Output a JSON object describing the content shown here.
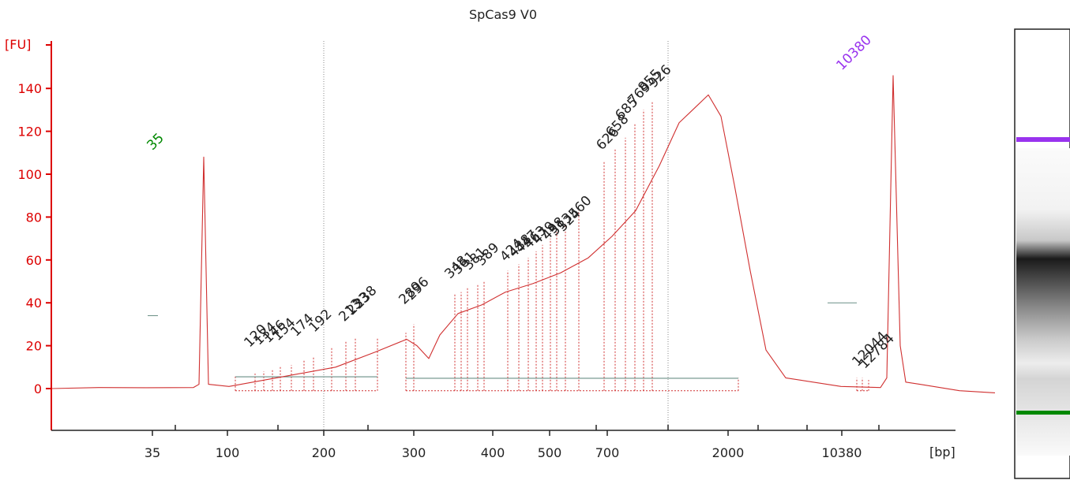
{
  "chart_data": {
    "type": "line",
    "title": "SpCas9 V0",
    "ylabel": "[FU]",
    "xlabel": "[bp]",
    "ylim": [
      -15,
      155
    ],
    "yticks": [
      0,
      20,
      40,
      60,
      80,
      100,
      120,
      140
    ],
    "xticks": [
      "35",
      "100",
      "200",
      "300",
      "400",
      "500",
      "700",
      "2000",
      "10380"
    ],
    "colors": {
      "axis": "#dd0000",
      "trace": "#d03030",
      "marker_lower": "#008800",
      "marker_upper": "#9933ee",
      "baseline": "#6a8f86",
      "peak_label": "#222222"
    },
    "markers": [
      {
        "label": "35",
        "height": 108
      },
      {
        "label": "10380",
        "height": 146
      }
    ],
    "peak_labels": [
      "120",
      "134",
      "146",
      "154",
      "174",
      "192",
      "213",
      "233",
      "238",
      "289",
      "296",
      "348",
      "361",
      "381",
      "389",
      "424",
      "438",
      "447",
      "463",
      "479",
      "498",
      "513",
      "524",
      "560",
      "626",
      "658",
      "685",
      "769",
      "855",
      "926",
      "12044",
      "12784"
    ],
    "profile": [
      {
        "pos": 0,
        "fu": 0
      },
      {
        "pos": 60,
        "fu": 0.5
      },
      {
        "pos": 120,
        "fu": 0.4
      },
      {
        "pos": 180,
        "fu": 0.5
      },
      {
        "pos": 187,
        "fu": 2
      },
      {
        "pos": 193,
        "fu": 108
      },
      {
        "pos": 199,
        "fu": 2
      },
      {
        "pos": 225,
        "fu": 1
      },
      {
        "pos": 300,
        "fu": 6
      },
      {
        "pos": 360,
        "fu": 10
      },
      {
        "pos": 410,
        "fu": 17
      },
      {
        "pos": 450,
        "fu": 23
      },
      {
        "pos": 463,
        "fu": 20
      },
      {
        "pos": 478,
        "fu": 14
      },
      {
        "pos": 492,
        "fu": 25
      },
      {
        "pos": 515,
        "fu": 35
      },
      {
        "pos": 545,
        "fu": 39
      },
      {
        "pos": 575,
        "fu": 45
      },
      {
        "pos": 610,
        "fu": 49
      },
      {
        "pos": 645,
        "fu": 54
      },
      {
        "pos": 680,
        "fu": 61
      },
      {
        "pos": 710,
        "fu": 71
      },
      {
        "pos": 740,
        "fu": 83
      },
      {
        "pos": 770,
        "fu": 104
      },
      {
        "pos": 795,
        "fu": 124
      },
      {
        "pos": 815,
        "fu": 131
      },
      {
        "pos": 832,
        "fu": 137
      },
      {
        "pos": 848,
        "fu": 127
      },
      {
        "pos": 865,
        "fu": 95
      },
      {
        "pos": 885,
        "fu": 55
      },
      {
        "pos": 905,
        "fu": 18
      },
      {
        "pos": 930,
        "fu": 5
      },
      {
        "pos": 1000,
        "fu": 1
      },
      {
        "pos": 1050,
        "fu": 0.5
      },
      {
        "pos": 1058,
        "fu": 5
      },
      {
        "pos": 1066,
        "fu": 146
      },
      {
        "pos": 1075,
        "fu": 20
      },
      {
        "pos": 1082,
        "fu": 3
      },
      {
        "pos": 1100,
        "fu": 2
      },
      {
        "pos": 1150,
        "fu": -1
      },
      {
        "pos": 1195,
        "fu": -2
      }
    ],
    "gel_bands": [
      {
        "label": "10380",
        "color": "#9933ee"
      },
      {
        "label": "35",
        "color": "#008800"
      }
    ]
  }
}
